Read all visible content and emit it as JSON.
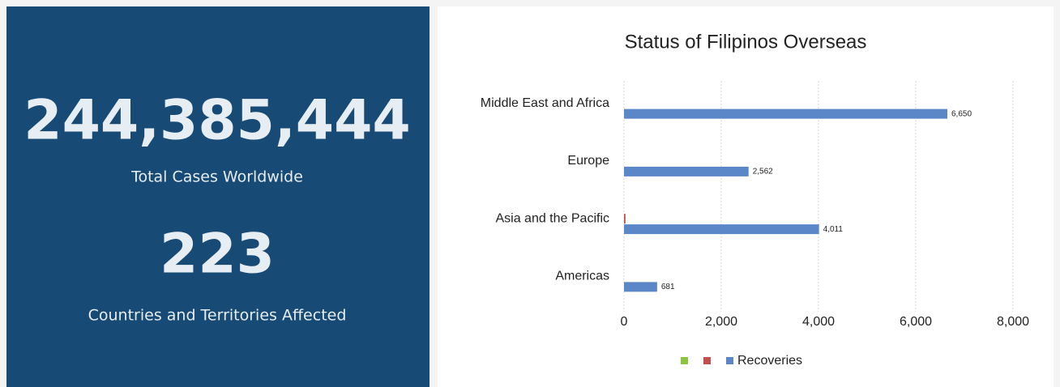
{
  "panel": {
    "total_cases": "244,385,444",
    "total_cases_label": "Total Cases Worldwide",
    "countries": "223",
    "countries_label": "Countries and Territories Affected"
  },
  "chart_data": {
    "type": "hbar",
    "title": "Status of Filipinos Overseas",
    "categories": [
      "Middle East and Africa",
      "Europe",
      "Asia and the Pacific",
      "Americas"
    ],
    "series": [
      {
        "name": null,
        "color": "#8cc63f",
        "values": [
          0,
          0,
          0,
          0
        ]
      },
      {
        "name": null,
        "color": "#c0504d",
        "values": [
          0,
          0,
          30,
          0
        ]
      },
      {
        "name": "Recoveries",
        "color": "#5b87c9",
        "values": [
          6650,
          2562,
          4011,
          681
        ],
        "value_labels": [
          "6,650",
          "2,562",
          "4,011",
          "681"
        ]
      }
    ],
    "xlim": [
      0,
      8000
    ],
    "xticks": [
      0,
      {
        "value": 2000,
        "label": "2,000"
      },
      {
        "value": 4000,
        "label": "4,000"
      },
      {
        "value": 6000,
        "label": "6,000"
      },
      {
        "value": 8000,
        "label": "8,000"
      }
    ],
    "grid": true,
    "legend": "bottom"
  }
}
